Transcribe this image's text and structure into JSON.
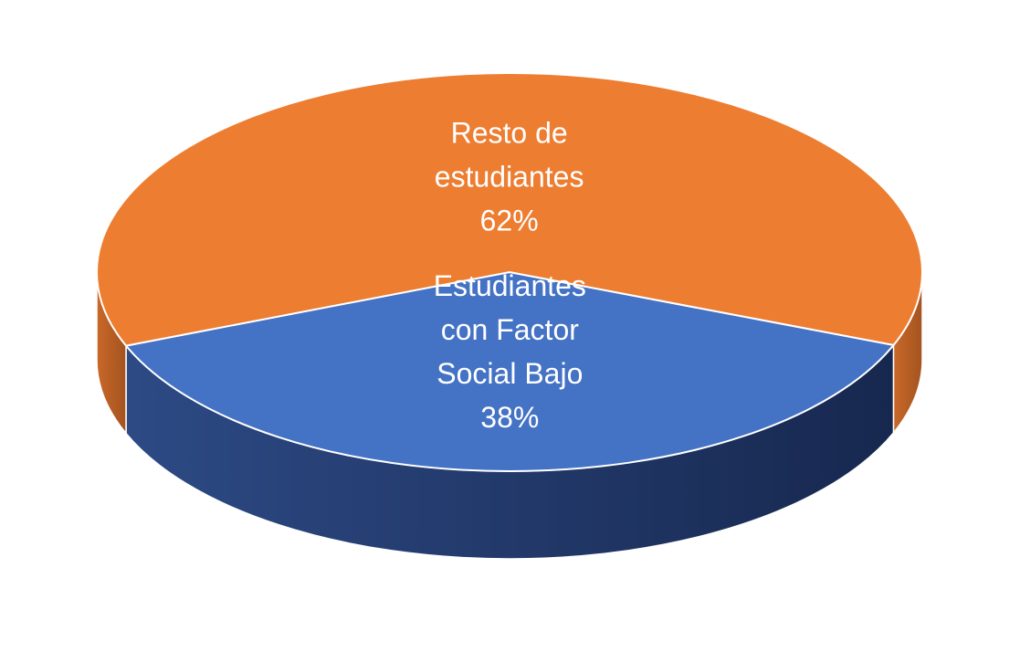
{
  "chart_data": {
    "type": "pie",
    "style": "3d",
    "title": "",
    "categories": [
      "Estudiantes con Factor Social Bajo",
      "Resto de estudiantes"
    ],
    "values": [
      38,
      62
    ],
    "colors": [
      "#4472C4",
      "#ED7D31"
    ],
    "side_colors": [
      "#223B6E",
      "#B3591F"
    ],
    "labels": [
      {
        "lines": [
          "Estudiantes",
          "con Factor",
          "Social Bajo",
          "38%"
        ]
      },
      {
        "lines": [
          "Resto de",
          "estudiantes",
          "62%"
        ]
      }
    ],
    "legend": "none"
  }
}
